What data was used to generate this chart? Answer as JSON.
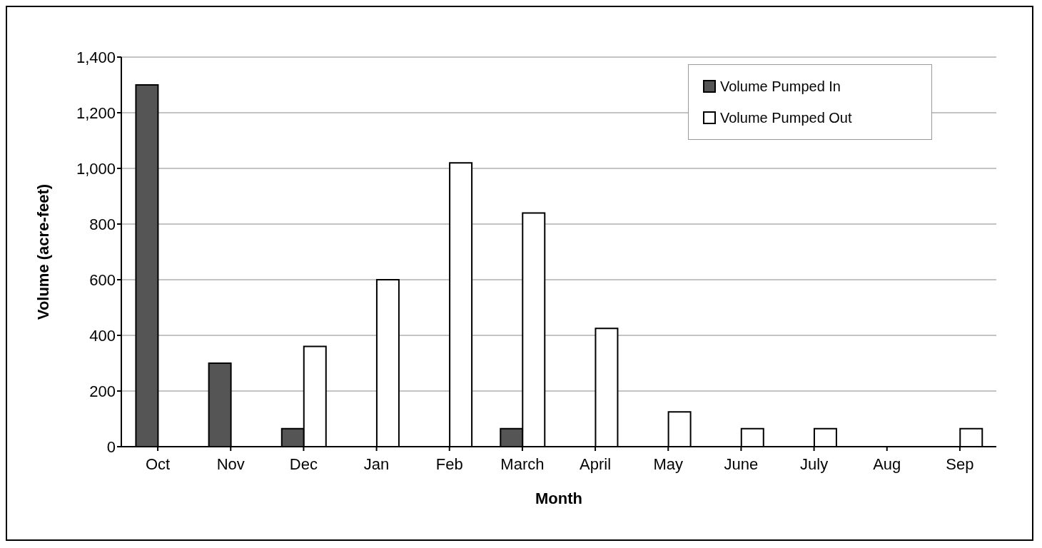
{
  "chart_data": {
    "type": "bar",
    "xlabel": "Month",
    "ylabel": "Volume (acre-feet)",
    "categories": [
      "Oct",
      "Nov",
      "Dec",
      "Jan",
      "Feb",
      "March",
      "April",
      "May",
      "June",
      "July",
      "Aug",
      "Sep"
    ],
    "series": [
      {
        "name": "Volume Pumped In",
        "color": "#555555",
        "values": [
          1300,
          300,
          65,
          0,
          0,
          65,
          0,
          0,
          0,
          0,
          0,
          0
        ]
      },
      {
        "name": "Volume Pumped Out",
        "color": "#ffffff",
        "values": [
          0,
          0,
          360,
          600,
          1020,
          840,
          425,
          125,
          65,
          65,
          0,
          65
        ]
      }
    ],
    "ylim": [
      0,
      1400
    ],
    "yticks": [
      {
        "value": 0,
        "label": "0"
      },
      {
        "value": 200,
        "label": "200"
      },
      {
        "value": 400,
        "label": "400"
      },
      {
        "value": 600,
        "label": "600"
      },
      {
        "value": 800,
        "label": "800"
      },
      {
        "value": 1000,
        "label": "1,000"
      },
      {
        "value": 1200,
        "label": "1,200"
      },
      {
        "value": 1400,
        "label": "1,400"
      }
    ],
    "grid": "y",
    "legend": "top right"
  }
}
